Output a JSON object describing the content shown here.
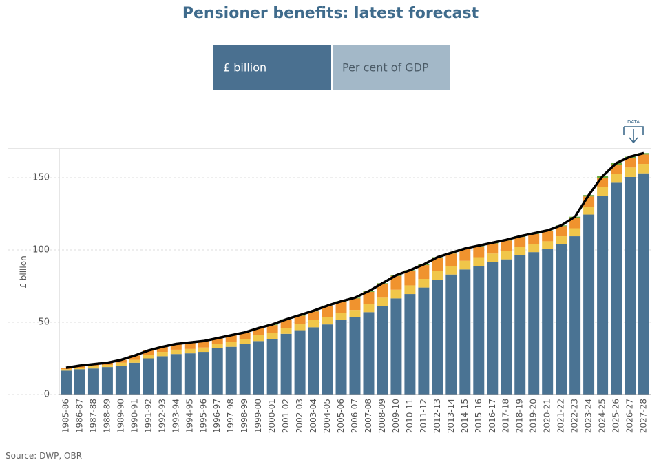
{
  "chart_data": {
    "type": "stacked-bar-line",
    "title": "Pensioner benefits: latest forecast",
    "y_label": "£ billion",
    "categories": [
      "1985-86",
      "1986-87",
      "1987-88",
      "1988-89",
      "1989-90",
      "1990-91",
      "1991-92",
      "1992-93",
      "1993-94",
      "1994-95",
      "1995-96",
      "1996-97",
      "1997-98",
      "1998-99",
      "1999-00",
      "2000-01",
      "2001-02",
      "2002-03",
      "2003-04",
      "2004-05",
      "2005-06",
      "2006-07",
      "2007-08",
      "2008-09",
      "2009-10",
      "2010-11",
      "2011-12",
      "2012-13",
      "2013-14",
      "2014-15",
      "2015-16",
      "2016-17",
      "2017-18",
      "2018-19",
      "2019-20",
      "2020-21",
      "2021-22",
      "2022-23",
      "2023-24",
      "2024-25",
      "2025-26",
      "2026-27",
      "2027-28"
    ],
    "series": [
      {
        "color": "#4a7393",
        "values": [
          16.5,
          17.5,
          18,
          19,
          20,
          22,
          25,
          26.5,
          28,
          28.5,
          29.5,
          32,
          33,
          35,
          37,
          38.5,
          42,
          44.5,
          46.5,
          48.5,
          51.5,
          53.5,
          57,
          61,
          66.5,
          69.5,
          74,
          79.5,
          83,
          86.5,
          89,
          91.5,
          93.5,
          96.5,
          98.5,
          100.5,
          104,
          109.5,
          124.5,
          137.5,
          146.5,
          150.5,
          153
        ]
      },
      {
        "color": "#f0c64a",
        "values": [
          1,
          1,
          1.5,
          1.5,
          2,
          2,
          2.5,
          3,
          3,
          3,
          3,
          3,
          3.5,
          3.5,
          4,
          4,
          4,
          4.5,
          5,
          5,
          5,
          5,
          5.5,
          6,
          6,
          6,
          6,
          6,
          6,
          6,
          6,
          6,
          6,
          5.5,
          5.5,
          5.5,
          5.5,
          5.5,
          5.5,
          6,
          6,
          6.5,
          6.5
        ]
      },
      {
        "color": "#f0932e",
        "values": [
          1,
          1.5,
          1.5,
          1.5,
          2,
          3,
          3,
          3.5,
          4,
          4.5,
          4.5,
          4,
          4.5,
          4.5,
          5,
          5.5,
          5.5,
          5.5,
          6,
          7.5,
          7.5,
          8,
          8.5,
          9.5,
          9.5,
          10,
          9.5,
          9,
          8.5,
          8,
          7.5,
          7,
          7,
          7,
          7,
          7,
          7,
          7,
          7,
          6.5,
          6.5,
          6.5,
          6.5
        ]
      },
      {
        "color": "#6aaa3a",
        "values": [
          0,
          0,
          0,
          0,
          0,
          0,
          0,
          0,
          0,
          0,
          0,
          0,
          0,
          0,
          0,
          0.5,
          0.5,
          0.5,
          0.5,
          0.5,
          0.5,
          0.5,
          0.5,
          0.5,
          0.5,
          0.5,
          0.5,
          0.5,
          0.5,
          0.5,
          0.5,
          0.5,
          0.5,
          0.5,
          0.5,
          0.5,
          0.5,
          1,
          1,
          1,
          1,
          1,
          1
        ]
      }
    ],
    "line": {
      "color": "#000000",
      "values": [
        18.5,
        20,
        21,
        22,
        24,
        27,
        30.5,
        33,
        35,
        36,
        37,
        39,
        41,
        43,
        46,
        48.5,
        52,
        55,
        58,
        61.5,
        64.5,
        67,
        71.5,
        77,
        82.5,
        86,
        90,
        95,
        98,
        101,
        103,
        105,
        107,
        109.5,
        111.5,
        113.5,
        117,
        123,
        138,
        151,
        160,
        164.5,
        167
      ]
    },
    "ylim": [
      0,
      170
    ],
    "yticks": [
      0,
      50,
      100,
      150
    ],
    "grid": true
  },
  "controls": {
    "buttons": [
      "£ billion",
      "Per cent of GDP"
    ],
    "download": "DATA"
  },
  "source": "Source: DWP, OBR"
}
